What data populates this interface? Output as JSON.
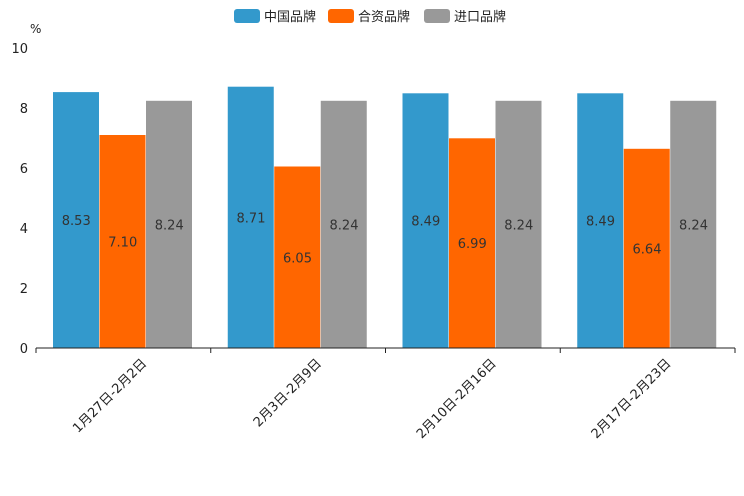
{
  "chart_data": {
    "type": "bar",
    "title": "",
    "xlabel": "",
    "ylabel": "%",
    "ylim": [
      0,
      10
    ],
    "yticks": [
      0,
      2,
      4,
      6,
      8,
      10
    ],
    "grid": false,
    "legend_position": "top-center",
    "categories": [
      "1月27日-2月2日",
      "2月3日-2月9日",
      "2月10日-2月16日",
      "2月17日-2月23日"
    ],
    "series": [
      {
        "name": "中国品牌",
        "color": "#3399cc",
        "values": [
          8.53,
          8.71,
          8.49,
          8.49
        ]
      },
      {
        "name": "合资品牌",
        "color": "#ff6600",
        "values": [
          7.1,
          6.05,
          6.99,
          6.64
        ]
      },
      {
        "name": "进口品牌",
        "color": "#999999",
        "values": [
          8.24,
          8.24,
          8.24,
          8.24
        ]
      }
    ]
  }
}
